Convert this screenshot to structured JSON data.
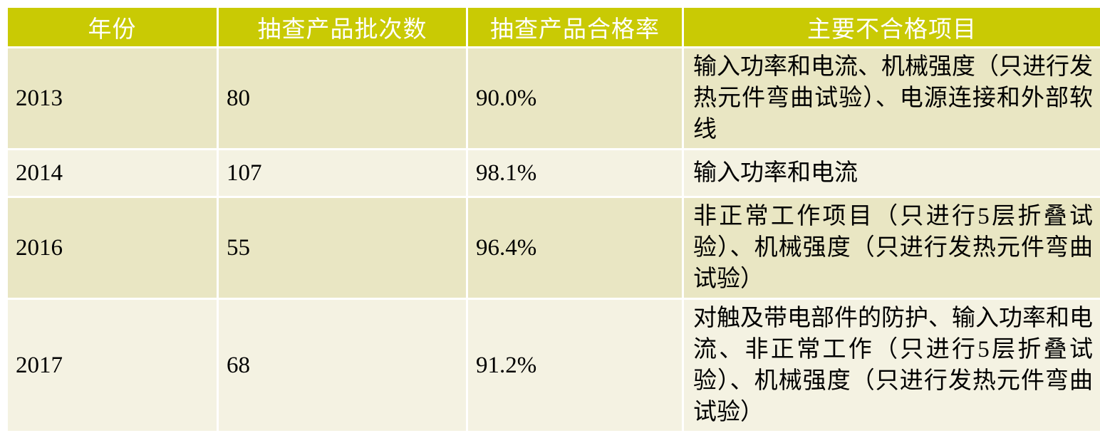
{
  "table": {
    "headers": [
      "年份",
      "抽查产品批次数",
      "抽查产品合格率",
      "主要不合格项目"
    ],
    "rows": [
      {
        "year": "2013",
        "batch_count": "80",
        "pass_rate": "90.0%",
        "main_failed_items": "输入功率和电流、机械强度（只进行发热元件弯曲试验）、电源连接和外部软线"
      },
      {
        "year": "2014",
        "batch_count": "107",
        "pass_rate": "98.1%",
        "main_failed_items": "输入功率和电流"
      },
      {
        "year": "2016",
        "batch_count": "55",
        "pass_rate": "96.4%",
        "main_failed_items": "非正常工作项目（只进行5层折叠试验）、机械强度（只进行发热元件弯曲试验）"
      },
      {
        "year": "2017",
        "batch_count": "68",
        "pass_rate": "91.2%",
        "main_failed_items": "对触及带电部件的防护、输入功率和电流、非正常工作（只进行5层折叠试验）、机械强度（只进行发热元件弯曲试验）"
      }
    ],
    "colors": {
      "header_bg": "#c9ca04",
      "header_text": "#ffffff",
      "row_odd_bg": "#e9e6c3",
      "row_even_bg": "#f4f2e2",
      "grid": "#ffffff",
      "body_text": "#000000"
    }
  }
}
